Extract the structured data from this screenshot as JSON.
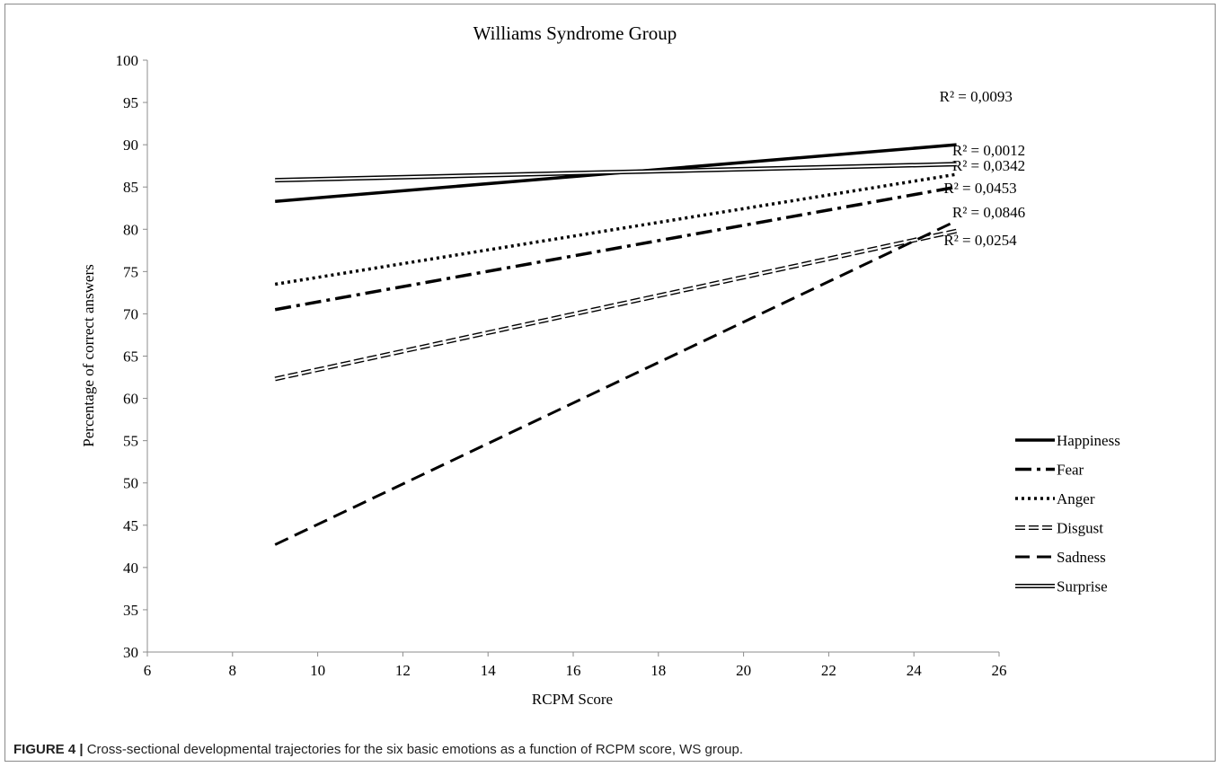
{
  "caption": {
    "label": "FIGURE 4 |",
    "text": "Cross-sectional developmental trajectories for the six basic emotions as a function of RCPM score, WS group."
  },
  "chart_data": {
    "type": "line",
    "title": "Williams Syndrome Group",
    "xlabel": "RCPM Score",
    "ylabel": "Percentage of correct answers",
    "xlim": [
      6,
      26
    ],
    "ylim": [
      30,
      100
    ],
    "xticks": [
      6,
      8,
      10,
      12,
      14,
      16,
      18,
      20,
      22,
      24,
      26
    ],
    "yticks": [
      30,
      35,
      40,
      45,
      50,
      55,
      60,
      65,
      70,
      75,
      80,
      85,
      90,
      95,
      100
    ],
    "grid": false,
    "legend_position": "right",
    "series": [
      {
        "name": "Happiness",
        "style": "solid",
        "x": [
          9,
          25
        ],
        "y": [
          83.3,
          90.0
        ],
        "r2": "R² = 0,0093"
      },
      {
        "name": "Fear",
        "style": "dashdot",
        "x": [
          9,
          25
        ],
        "y": [
          70.5,
          85.0
        ],
        "r2": "R² = 0,0453"
      },
      {
        "name": "Anger",
        "style": "dotted",
        "x": [
          9,
          25
        ],
        "y": [
          73.5,
          86.5
        ],
        "r2": "R² = 0,0342"
      },
      {
        "name": "Disgust",
        "style": "hollow-dashed",
        "x": [
          9,
          25
        ],
        "y": [
          62.3,
          79.8
        ],
        "r2": "R² = 0,0254"
      },
      {
        "name": "Sadness",
        "style": "dashed",
        "x": [
          9,
          25
        ],
        "y": [
          42.7,
          81.0
        ],
        "r2": "R² = 0,0846"
      },
      {
        "name": "Surprise",
        "style": "double",
        "x": [
          9,
          25
        ],
        "y": [
          85.8,
          87.7
        ],
        "r2": "R² = 0,0012"
      }
    ]
  }
}
